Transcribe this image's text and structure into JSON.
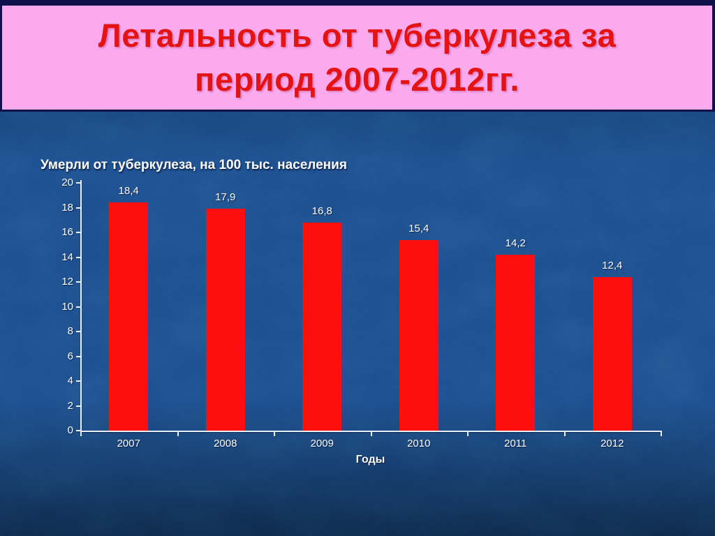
{
  "banner": {
    "title_lines": [
      "Летальность от туберкулеза за",
      "период 2007-2012гг."
    ]
  },
  "chart_data": {
    "type": "bar",
    "title": "Умерли от туберкулеза, на 100 тыс. населения",
    "categories": [
      "2007",
      "2008",
      "2009",
      "2010",
      "2011",
      "2012"
    ],
    "values": [
      18.4,
      17.9,
      16.8,
      15.4,
      14.2,
      12.4
    ],
    "value_labels": [
      "18,4",
      "17,9",
      "16,8",
      "15,4",
      "14,2",
      "12,4"
    ],
    "xlabel": "Годы",
    "ylabel": "",
    "ylim": [
      0,
      20
    ],
    "yticks": [
      0,
      2,
      4,
      6,
      8,
      10,
      12,
      14,
      16,
      18,
      20
    ],
    "grid": false,
    "legend": "none",
    "bar_color": "#fb0f0f",
    "axis_color": "#e9eff8",
    "text_color": "#ffffff"
  },
  "colors": {
    "frame": "#10104a",
    "banner_bg": "#fcaaee",
    "banner_text": "#e41414",
    "background_top": "#17477f",
    "background_mid": "#1c4e8e",
    "background_bottom": "#0d2a4c"
  }
}
